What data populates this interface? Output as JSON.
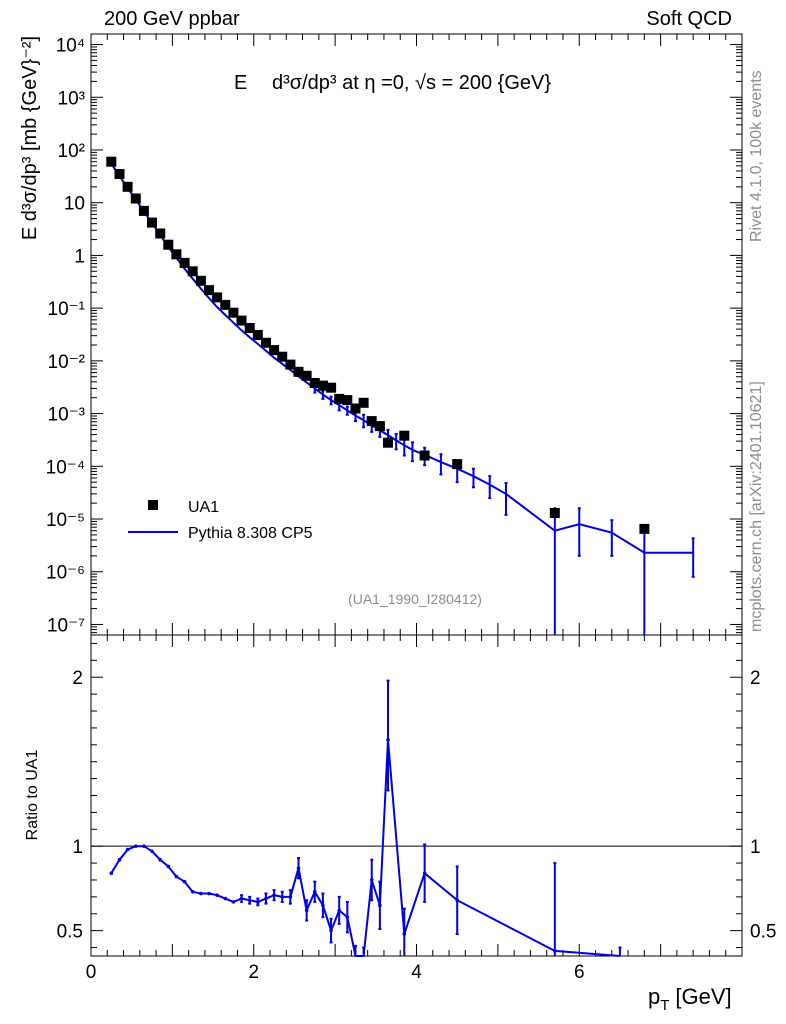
{
  "header": {
    "left": "200 GeV ppbar",
    "right": "Soft QCD"
  },
  "sidebar": {
    "rivet": "Rivet 4.1.0,  100k events",
    "mcplots": "mcplots.cern.ch [arXiv:2401.10621]"
  },
  "colors": {
    "data": "#000000",
    "mc": "#0000e6",
    "muted": "#8c8c8c"
  },
  "chart_data": [
    {
      "type": "scatter",
      "panel": "main",
      "title_parts": {
        "E": "E",
        "main": "d³σ/dp³ at η =0, √s = 200 {GeV}"
      },
      "ylabel": "E d³σ/dp³ [mb {GeV}⁻²]",
      "xlim": [
        0,
        8
      ],
      "ylim_log10": [
        -7.2,
        4.2
      ],
      "ytick_labels": [
        "10⁻⁷",
        "10⁻⁶",
        "10⁻⁵",
        "10⁻⁴",
        "10⁻³",
        "10⁻²",
        "10⁻¹",
        "1",
        "10",
        "10²",
        "10³",
        "10⁴"
      ],
      "ytick_exponents": [
        -7,
        -6,
        -5,
        -4,
        -3,
        -2,
        -1,
        0,
        1,
        2,
        3,
        4
      ],
      "legend": [
        {
          "name": "UA1",
          "marker": "square"
        },
        {
          "name": "Pythia 8.308 CP5",
          "marker": "line"
        }
      ],
      "legend_position": "bottom-left",
      "watermark": "(UA1_1990_I280412)",
      "series": [
        {
          "name": "UA1",
          "x": [
            0.25,
            0.35,
            0.45,
            0.55,
            0.65,
            0.75,
            0.85,
            0.95,
            1.05,
            1.15,
            1.25,
            1.35,
            1.45,
            1.55,
            1.65,
            1.75,
            1.85,
            1.95,
            2.05,
            2.15,
            2.25,
            2.35,
            2.45,
            2.55,
            2.65,
            2.75,
            2.85,
            2.95,
            3.05,
            3.15,
            3.25,
            3.35,
            3.45,
            3.55,
            3.65,
            3.85,
            4.1,
            4.5,
            5.7,
            6.8
          ],
          "y": [
            60,
            35,
            20,
            12,
            7,
            4.2,
            2.6,
            1.6,
            1.05,
            0.72,
            0.5,
            0.33,
            0.22,
            0.16,
            0.115,
            0.082,
            0.058,
            0.042,
            0.031,
            0.022,
            0.016,
            0.012,
            0.0085,
            0.0062,
            0.0052,
            0.0038,
            0.0034,
            0.0031,
            0.0019,
            0.0018,
            0.00125,
            0.0016,
            0.00072,
            0.00058,
            0.00028,
            0.00038,
            0.00016,
            0.00011,
            1.3e-05,
            6.5e-06
          ]
        },
        {
          "name": "Pythia 8.308 CP5",
          "x": [
            0.25,
            0.35,
            0.45,
            0.55,
            0.65,
            0.75,
            0.85,
            0.95,
            1.05,
            1.15,
            1.25,
            1.35,
            1.45,
            1.55,
            1.65,
            1.75,
            1.85,
            1.95,
            2.05,
            2.15,
            2.25,
            2.35,
            2.45,
            2.55,
            2.65,
            2.75,
            2.85,
            2.95,
            3.05,
            3.15,
            3.25,
            3.35,
            3.45,
            3.55,
            3.65,
            3.75,
            3.85,
            3.95,
            4.1,
            4.3,
            4.5,
            4.7,
            4.9,
            5.1,
            5.7,
            6.0,
            6.4,
            6.8,
            7.4
          ],
          "y": [
            55,
            32,
            19,
            11.5,
            6.8,
            4.1,
            2.45,
            1.45,
            0.9,
            0.56,
            0.36,
            0.235,
            0.155,
            0.105,
            0.074,
            0.053,
            0.038,
            0.028,
            0.021,
            0.0155,
            0.0115,
            0.0088,
            0.0067,
            0.0051,
            0.0039,
            0.003,
            0.0023,
            0.0018,
            0.00145,
            0.00115,
            0.00092,
            0.00075,
            0.0006,
            0.00048,
            0.00039,
            0.00031,
            0.00025,
            0.000205,
            0.000165,
            0.00012,
            9e-05,
            6.5e-05,
            4.5e-05,
            3e-05,
            6e-06,
            8e-06,
            5.5e-06,
            2.3e-06,
            2.3e-06
          ],
          "err_lo": [
            0,
            0,
            0,
            0,
            0,
            0,
            0,
            0,
            0,
            0,
            0,
            0,
            0,
            0,
            0,
            0,
            0,
            0,
            0,
            0,
            0,
            0,
            0,
            0,
            0,
            0.0005,
            0.0004,
            0.0003,
            0.0003,
            0.0002,
            0.0002,
            0.0002,
            0.00015,
            0.00012,
            0.0001,
            0.0001,
            9e-05,
            8e-05,
            6e-05,
            5e-05,
            4e-05,
            2.5e-05,
            2e-05,
            1.8e-05,
            6e-06,
            6e-06,
            3.5e-06,
            2.3e-06,
            1.5e-06
          ],
          "err_hi": [
            0,
            0,
            0,
            0,
            0,
            0,
            0,
            0,
            0,
            0,
            0,
            0,
            0,
            0,
            0,
            0,
            0,
            0,
            0,
            0,
            0,
            0,
            0,
            0,
            0,
            0.0005,
            0.0004,
            0.0003,
            0.0003,
            0.0002,
            0.0002,
            0.0002,
            0.00015,
            0.00012,
            0.0001,
            0.0001,
            9e-05,
            8e-05,
            6e-05,
            5e-05,
            4e-05,
            2.5e-05,
            2e-05,
            1.8e-05,
            1e-05,
            8e-06,
            4e-06,
            4e-06,
            2e-06
          ]
        }
      ]
    },
    {
      "type": "line",
      "panel": "ratio",
      "xlabel": "p_T [GeV]",
      "xlabel_main": "p",
      "xlabel_sub": "T",
      "xlabel_unit": "[GeV]",
      "ylabel": "Ratio to UA1",
      "xlim": [
        0,
        8
      ],
      "ylim": [
        0.35,
        2.25
      ],
      "xtick_values": [
        0,
        2,
        4,
        6
      ],
      "xtick_labels": [
        "0",
        "2",
        "4",
        "6"
      ],
      "ytick_values": [
        0.5,
        1,
        2
      ],
      "ytick_labels": [
        "0.5",
        "1",
        "2"
      ],
      "reference_line": 1,
      "series": [
        {
          "name": "Pythia 8.308 CP5 / UA1",
          "x": [
            0.25,
            0.35,
            0.45,
            0.55,
            0.65,
            0.75,
            0.85,
            0.95,
            1.05,
            1.15,
            1.25,
            1.35,
            1.45,
            1.55,
            1.65,
            1.75,
            1.85,
            1.95,
            2.05,
            2.15,
            2.25,
            2.35,
            2.45,
            2.55,
            2.65,
            2.75,
            2.85,
            2.95,
            3.05,
            3.15,
            3.25,
            3.35,
            3.45,
            3.55,
            3.65,
            3.85,
            4.1,
            4.5,
            5.7,
            6.5
          ],
          "y": [
            0.84,
            0.92,
            0.98,
            1.0,
            1.0,
            0.97,
            0.92,
            0.88,
            0.82,
            0.79,
            0.73,
            0.72,
            0.72,
            0.71,
            0.69,
            0.67,
            0.69,
            0.68,
            0.67,
            0.69,
            0.71,
            0.7,
            0.7,
            0.87,
            0.62,
            0.73,
            0.65,
            0.5,
            0.62,
            0.58,
            0.31,
            0.3,
            0.8,
            0.65,
            1.63,
            0.48,
            0.84,
            0.68,
            0.38,
            0.3
          ],
          "err_lo": [
            0,
            0,
            0,
            0,
            0,
            0,
            0,
            0,
            0,
            0,
            0,
            0,
            0,
            0,
            0,
            0,
            0.02,
            0.02,
            0.02,
            0.03,
            0.03,
            0.03,
            0.04,
            0.06,
            0.06,
            0.06,
            0.07,
            0.07,
            0.08,
            0.09,
            0.1,
            0.1,
            0.12,
            0.14,
            0.3,
            0.15,
            0.17,
            0.2,
            0.3,
            0.1
          ],
          "err_hi": [
            0,
            0,
            0,
            0,
            0,
            0,
            0,
            0,
            0,
            0,
            0,
            0,
            0,
            0,
            0,
            0,
            0.02,
            0.02,
            0.02,
            0.03,
            0.03,
            0.03,
            0.04,
            0.06,
            0.06,
            0.06,
            0.07,
            0.07,
            0.08,
            0.09,
            0.1,
            0.1,
            0.12,
            0.14,
            0.35,
            0.15,
            0.17,
            0.2,
            0.52,
            0.1
          ]
        }
      ]
    }
  ]
}
